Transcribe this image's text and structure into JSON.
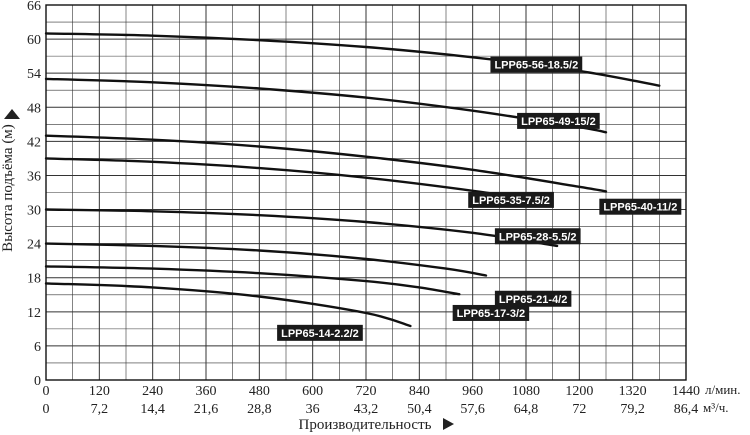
{
  "chart_data": {
    "type": "line",
    "title": "",
    "xlabel": "Производительность",
    "ylabel": "Высота подъёма (м)",
    "x_unit_primary": "л/мин.",
    "x_unit_secondary": "м³/ч.",
    "xlim": [
      0,
      1440
    ],
    "ylim": [
      0,
      66
    ],
    "x_ticks_primary": [
      "0",
      "120",
      "240",
      "360",
      "480",
      "600",
      "720",
      "840",
      "960",
      "1080",
      "1200",
      "1320",
      "1440"
    ],
    "x_ticks_secondary": [
      "0",
      "7,2",
      "14,4",
      "21,6",
      "28,8",
      "36",
      "43,2",
      "50,4",
      "57,6",
      "64,8",
      "72",
      "79,2",
      "86,4"
    ],
    "y_ticks": [
      "0",
      "6",
      "12",
      "18",
      "24",
      "30",
      "36",
      "42",
      "48",
      "54",
      "60",
      "66"
    ],
    "grid": true,
    "series": [
      {
        "name": "LPP65-56-18.5/2",
        "x": [
          0,
          240,
          480,
          720,
          960,
          1200,
          1380
        ],
        "y": [
          61,
          60.6,
          59.8,
          58.6,
          56.8,
          54.4,
          51.8
        ]
      },
      {
        "name": "LPP65-49-15/2",
        "x": [
          0,
          240,
          480,
          720,
          960,
          1200,
          1260
        ],
        "y": [
          53,
          52.4,
          51.3,
          49.7,
          47.4,
          44.5,
          43.6
        ]
      },
      {
        "name": "LPP65-40-11/2",
        "x": [
          0,
          240,
          480,
          720,
          960,
          1200,
          1260
        ],
        "y": [
          43,
          42.3,
          41.1,
          39.3,
          37,
          34,
          33.2
        ]
      },
      {
        "name": "LPP65-35-7.5/2",
        "x": [
          0,
          240,
          480,
          720,
          960,
          1130
        ],
        "y": [
          39,
          38.4,
          37.3,
          35.6,
          33.3,
          31.3
        ]
      },
      {
        "name": "LPP65-28-5.5/2",
        "x": [
          0,
          240,
          480,
          720,
          960,
          1150
        ],
        "y": [
          30,
          29.7,
          29,
          27.8,
          25.9,
          23.6
        ]
      },
      {
        "name": "LPP65-21-4/2",
        "x": [
          0,
          240,
          480,
          720,
          900,
          990
        ],
        "y": [
          24,
          23.6,
          22.8,
          21.3,
          19.6,
          18.4
        ]
      },
      {
        "name": "LPP65-17-3/2",
        "x": [
          0,
          240,
          480,
          720,
          840,
          930
        ],
        "y": [
          20,
          19.6,
          18.8,
          17.4,
          16.3,
          15.1
        ]
      },
      {
        "name": "LPP65-14-2.2/2",
        "x": [
          0,
          240,
          480,
          720,
          820
        ],
        "y": [
          17,
          16.3,
          14.7,
          11.8,
          9.5
        ]
      }
    ],
    "labels": [
      {
        "text": "LPP65-56-18.5/2",
        "x": 1000,
        "y": 55.5
      },
      {
        "text": "LPP65-49-15/2",
        "x": 1060,
        "y": 45.6
      },
      {
        "text": "LPP65-40-11/2",
        "x": 1245,
        "y": 30.5
      },
      {
        "text": "LPP65-35-7.5/2",
        "x": 950,
        "y": 31.7
      },
      {
        "text": "LPP65-28-5.5/2",
        "x": 1010,
        "y": 25.3
      },
      {
        "text": "LPP65-21-4/2",
        "x": 1010,
        "y": 14.3
      },
      {
        "text": "LPP65-17-3/2",
        "x": 915,
        "y": 11.8
      },
      {
        "text": "LPP65-14-2.2/2",
        "x": 520,
        "y": 8.3
      }
    ]
  }
}
